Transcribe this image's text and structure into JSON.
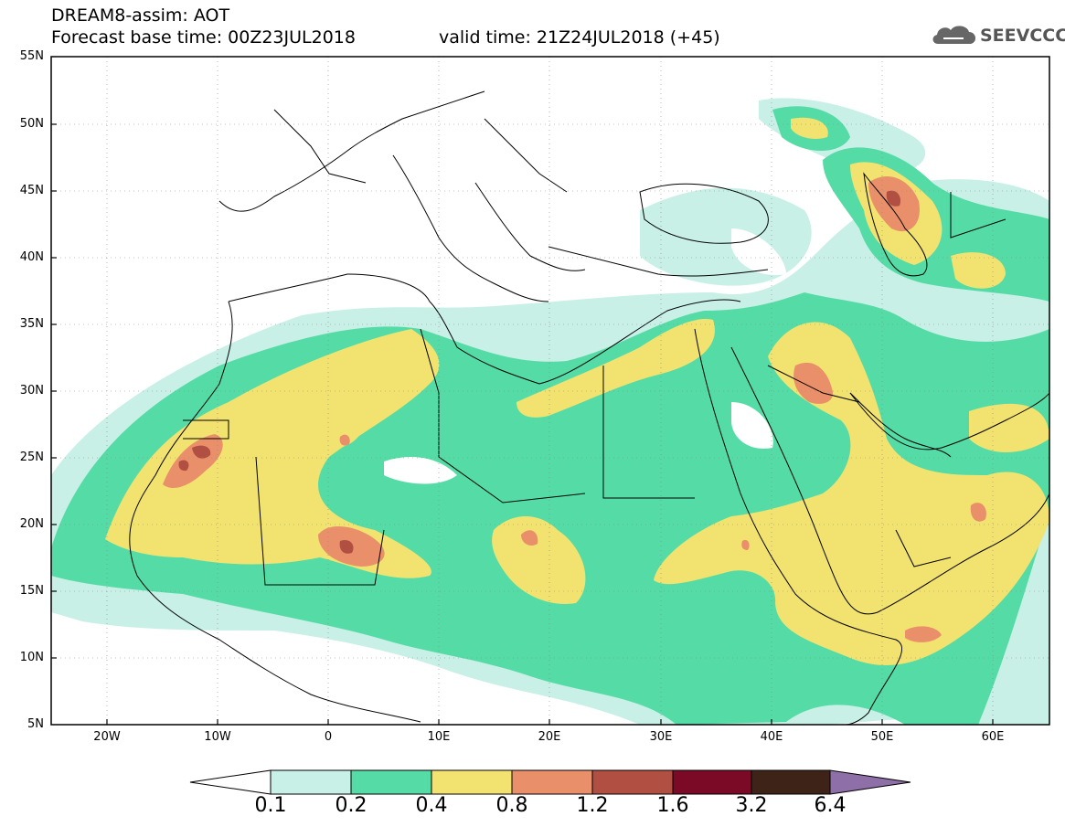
{
  "header": {
    "line1": "DREAM8-assim: AOT",
    "line2": "Forecast base time: 00Z23JUL2018",
    "valid": "valid time: 21Z24JUL2018 (+45)",
    "logo_text": "SEEVCCC",
    "logo_icon": "cloud-icon"
  },
  "map": {
    "lon_range": [
      -25,
      65
    ],
    "lat_range": [
      5,
      55
    ],
    "y_ticks": [
      "5N",
      "10N",
      "15N",
      "20N",
      "25N",
      "30N",
      "35N",
      "40N",
      "45N",
      "50N",
      "55N"
    ],
    "x_ticks": [
      "20W",
      "10W",
      "0",
      "10E",
      "20E",
      "30E",
      "40E",
      "50E",
      "60E"
    ],
    "grid": "dotted"
  },
  "colorbar": {
    "thresholds": [
      "0.1",
      "0.2",
      "0.4",
      "0.8",
      "1.2",
      "1.6",
      "3.2",
      "6.4"
    ],
    "colors": [
      "#c8f0e6",
      "#55dca6",
      "#f2e26f",
      "#e9906a",
      "#b24f43",
      "#7a0a26",
      "#3e2418",
      "#8f6fa8"
    ],
    "low_color": "#ffffff"
  }
}
